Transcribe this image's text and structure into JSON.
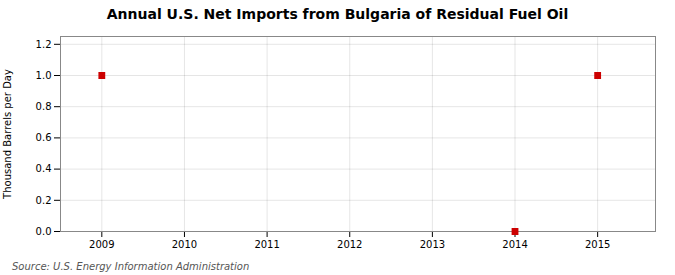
{
  "chart_data": {
    "type": "scatter",
    "title": "Annual U.S. Net Imports from Bulgaria of Residual Fuel Oil",
    "ylabel": "Thousand Barrels per Day",
    "caption": "Source: U.S. Energy Information Administration",
    "x": [
      2009,
      2014,
      2015
    ],
    "values": [
      1.0,
      0.0,
      1.0
    ],
    "color": "#cc0000",
    "marker": "square",
    "xlim": [
      2008.5,
      2015.7
    ],
    "ylim": [
      0.0,
      1.25
    ],
    "xticks": [
      2009,
      2010,
      2011,
      2012,
      2013,
      2014,
      2015
    ],
    "yticks": [
      {
        "value": 0.0,
        "label": "0.0"
      },
      0.2,
      0.4,
      0.6,
      0.8,
      {
        "value": 1.0,
        "label": "1.0"
      },
      1.2
    ],
    "grid": true
  }
}
